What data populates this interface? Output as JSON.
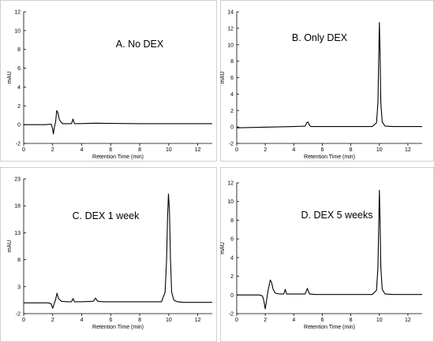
{
  "chart_data": [
    {
      "type": "line",
      "title": "A.  No DEX",
      "xlabel": "Retention Time (min)",
      "ylabel": "mAU",
      "xlim": [
        0,
        13
      ],
      "ylim": [
        -2,
        12
      ],
      "xticks": [
        0,
        2,
        4,
        6,
        8,
        10,
        12
      ],
      "yticks": [
        -2,
        0,
        2,
        4,
        6,
        8,
        10,
        12
      ],
      "grid": false,
      "series": [
        {
          "color": "#000000",
          "x": [
            0,
            1.5,
            1.9,
            2.0,
            2.05,
            2.1,
            2.2,
            2.28,
            2.35,
            2.45,
            2.55,
            2.7,
            3.0,
            3.3,
            3.4,
            3.5,
            3.7,
            5.0,
            8.0,
            13
          ],
          "y": [
            0,
            0,
            0.05,
            -0.5,
            -1.0,
            -0.4,
            0.3,
            1.5,
            1.3,
            0.6,
            0.3,
            0.1,
            0.1,
            0.1,
            0.6,
            0.1,
            0.1,
            0.15,
            0.1,
            0.1
          ]
        }
      ]
    },
    {
      "type": "line",
      "title": "B. Only DEX",
      "xlabel": "Retention Time (min)",
      "ylabel": "mAU",
      "xlim": [
        0,
        13
      ],
      "ylim": [
        -2,
        14
      ],
      "xticks": [
        0,
        2,
        4,
        6,
        8,
        10,
        12
      ],
      "yticks": [
        -2,
        0,
        2,
        4,
        6,
        8,
        10,
        12,
        14
      ],
      "grid": false,
      "series": [
        {
          "color": "#000000",
          "x": [
            0,
            4.0,
            4.8,
            4.9,
            5.0,
            5.1,
            5.2,
            6.0,
            9.5,
            9.8,
            9.9,
            9.95,
            10.0,
            10.05,
            10.1,
            10.2,
            10.4,
            11.0,
            13
          ],
          "y": [
            -0.1,
            0.05,
            0.1,
            0.5,
            0.6,
            0.2,
            0.05,
            0.05,
            0.05,
            0.5,
            3.0,
            8.0,
            12.7,
            9.0,
            3.0,
            0.6,
            0.1,
            0.05,
            0.05
          ]
        }
      ]
    },
    {
      "type": "line",
      "title": "C. DEX 1 week",
      "xlabel": "Retention Time (min)",
      "ylabel": "mAU",
      "xlim": [
        0,
        13
      ],
      "ylim": [
        -2,
        23
      ],
      "xticks": [
        0,
        2,
        4,
        6,
        8,
        10,
        12
      ],
      "yticks": [
        -2,
        3,
        8,
        13,
        18,
        23
      ],
      "grid": false,
      "series": [
        {
          "color": "#000000",
          "x": [
            0,
            1.7,
            1.9,
            2.0,
            2.1,
            2.2,
            2.3,
            2.4,
            2.6,
            3.0,
            3.3,
            3.4,
            3.5,
            4.0,
            4.8,
            4.95,
            5.1,
            5.5,
            9.5,
            9.75,
            9.85,
            9.92,
            9.98,
            10.05,
            10.12,
            10.2,
            10.35,
            10.6,
            11.0,
            13
          ],
          "y": [
            0,
            0,
            -0.2,
            -1.0,
            -0.2,
            0.6,
            1.8,
            0.8,
            0.3,
            0.2,
            0.2,
            0.8,
            0.2,
            0.2,
            0.3,
            0.9,
            0.3,
            0.2,
            0.2,
            2.0,
            8.0,
            16.0,
            20.2,
            17.0,
            8.0,
            2.0,
            0.5,
            0.2,
            0.1,
            0.1
          ]
        }
      ]
    },
    {
      "type": "line",
      "title": "D. DEX 5 weeks",
      "xlabel": "Retention Time (min)",
      "ylabel": "mAU",
      "xlim": [
        0,
        13
      ],
      "ylim": [
        -2,
        12
      ],
      "xticks": [
        0,
        2,
        4,
        6,
        8,
        10,
        12
      ],
      "yticks": [
        -2,
        0,
        2,
        4,
        6,
        8,
        10,
        12
      ],
      "grid": false,
      "series": [
        {
          "color": "#000000",
          "x": [
            0,
            1.6,
            1.8,
            1.9,
            2.0,
            2.1,
            2.2,
            2.35,
            2.45,
            2.55,
            2.7,
            3.0,
            3.3,
            3.4,
            3.5,
            3.8,
            4.8,
            4.95,
            5.1,
            5.5,
            9.5,
            9.8,
            9.9,
            9.95,
            10.0,
            10.05,
            10.1,
            10.2,
            10.4,
            11.0,
            13
          ],
          "y": [
            0,
            0,
            -0.1,
            -0.6,
            -1.5,
            -0.5,
            0.5,
            1.6,
            1.3,
            0.6,
            0.2,
            0.1,
            0.1,
            0.6,
            0.1,
            0.1,
            0.1,
            0.7,
            0.1,
            0.05,
            0.05,
            0.5,
            3.0,
            7.0,
            11.2,
            8.0,
            3.0,
            0.6,
            0.1,
            0.05,
            0.05
          ]
        }
      ]
    }
  ]
}
